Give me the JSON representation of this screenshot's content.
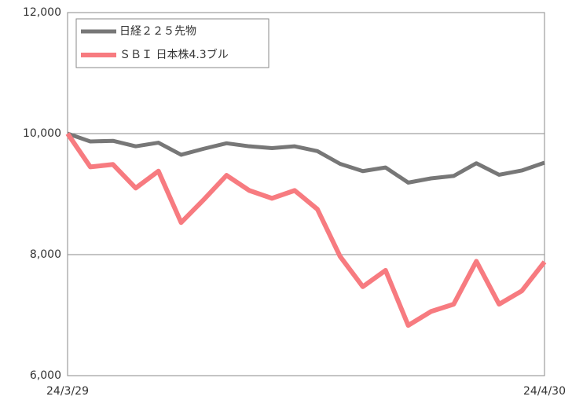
{
  "chart_data": {
    "type": "line",
    "categories": [
      "24/3/29",
      null,
      null,
      null,
      null,
      null,
      null,
      null,
      null,
      null,
      null,
      null,
      null,
      null,
      null,
      null,
      null,
      null,
      null,
      null,
      null,
      "24/4/30"
    ],
    "series": [
      {
        "name": "日経２２５先物",
        "color": "#777777",
        "values": [
          10000,
          9870,
          9880,
          9790,
          9850,
          9650,
          9750,
          9840,
          9790,
          9760,
          9790,
          9710,
          9500,
          9380,
          9440,
          9190,
          9260,
          9300,
          9510,
          9320,
          9390,
          9520
        ]
      },
      {
        "name": "ＳＢＩ 日本株4.3ブル",
        "color": "#f77b80",
        "values": [
          10000,
          9450,
          9490,
          9100,
          9380,
          8530,
          8910,
          9310,
          9060,
          8930,
          9060,
          8750,
          7970,
          7470,
          7740,
          6830,
          7060,
          7180,
          7890,
          7180,
          7400,
          7880
        ]
      }
    ],
    "ylim": [
      6000,
      12000
    ],
    "yticks": [
      {
        "value": 6000,
        "label": "6,000"
      },
      {
        "value": 8000,
        "label": "8,000"
      },
      {
        "value": 10000,
        "label": "10,000"
      },
      {
        "value": 12000,
        "label": "12,000"
      }
    ],
    "grid": true,
    "legend": "upper left"
  }
}
